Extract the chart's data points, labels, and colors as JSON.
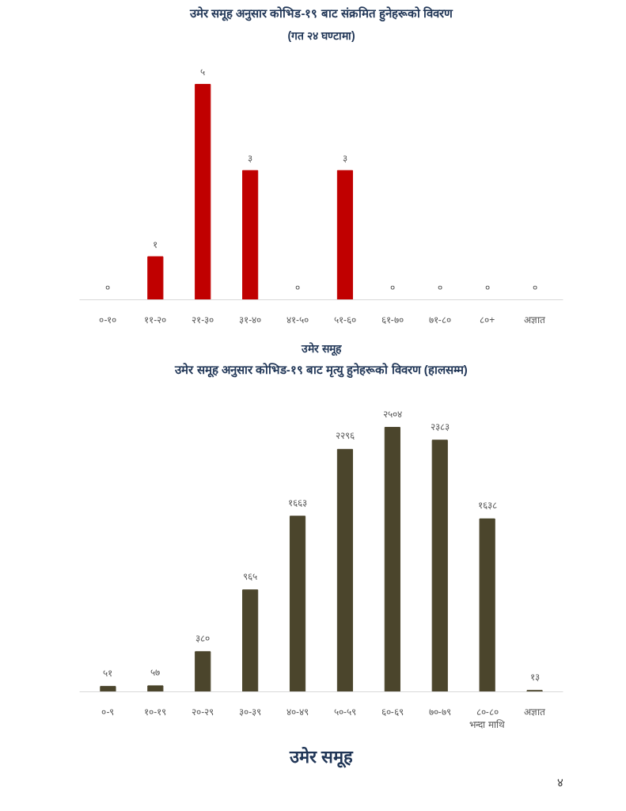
{
  "chart_data": [
    {
      "type": "bar",
      "title": "उमेर समूह अनुसार कोभिड-१९ बाट संक्रमित हुनेहरूको विवरण",
      "subtitle": "(गत २४ घण्टामा)",
      "xlabel": "उमेर समूह",
      "categories": [
        "०-१०",
        "११-२०",
        "२१-३०",
        "३१-४०",
        "४१-५०",
        "५१-६०",
        "६१-७०",
        "७१-८०",
        "८०+",
        "अज्ञात"
      ],
      "values": [
        0,
        1,
        5,
        3,
        0,
        3,
        0,
        0,
        0,
        0
      ],
      "value_labels": [
        "०",
        "१",
        "५",
        "३",
        "०",
        "३",
        "०",
        "०",
        "०",
        "०"
      ],
      "color": "#c00000",
      "grid": false
    },
    {
      "type": "bar",
      "title": "उमेर समूह अनुसार कोभिड-१९ बाट मृत्यु हुनेहरूको विवरण (हालसम्म)",
      "xlabel": "उमेर समूह",
      "categories": [
        "०-९",
        "१०-१९",
        "२०-२९",
        "३०-३९",
        "४०-४९",
        "५०-५९",
        "६०-६९",
        "७०-७९",
        "८०-८०\nभन्दा माथि",
        "अज्ञात"
      ],
      "values": [
        51,
        57,
        380,
        965,
        1663,
        2296,
        2504,
        2383,
        1638,
        13
      ],
      "value_labels": [
        "५१",
        "५७",
        "३८०",
        "९६५",
        "१६६३",
        "२२९६",
        "२५०४",
        "२३८३",
        "१६३८",
        "१३"
      ],
      "color": "#4b452c",
      "grid": false,
      "annotations": [
        "४"
      ]
    }
  ]
}
